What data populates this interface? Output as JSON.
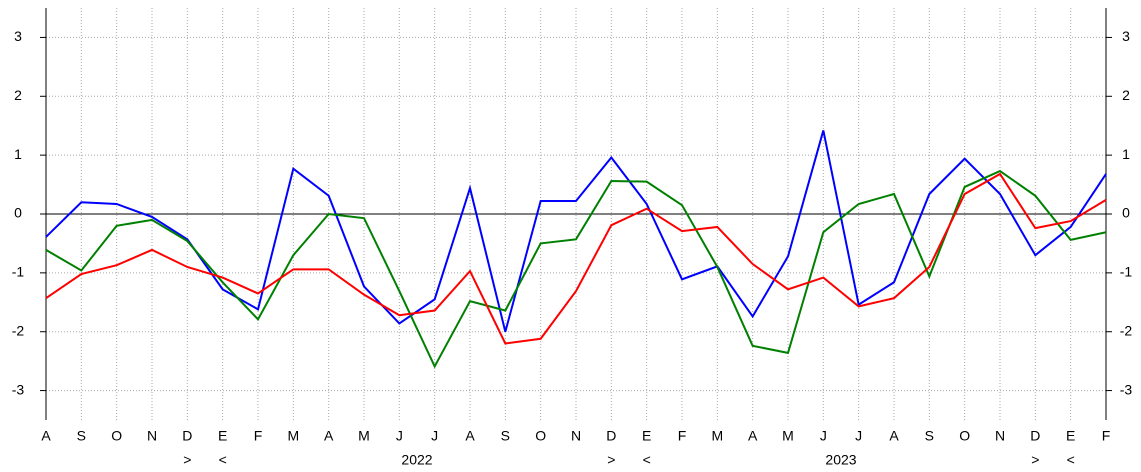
{
  "chart_data": {
    "type": "line",
    "categories": [
      "A",
      "S",
      "O",
      "N",
      "D",
      "E",
      "F",
      "M",
      "A",
      "M",
      "J",
      "J",
      "A",
      "S",
      "O",
      "N",
      "D",
      "E",
      "F",
      "M",
      "A",
      "M",
      "J",
      "J",
      "A",
      "S",
      "O",
      "N",
      "D",
      "E",
      "F"
    ],
    "x_sublabels": [
      null,
      null,
      null,
      null,
      ">",
      "<",
      null,
      null,
      null,
      null,
      null,
      null,
      null,
      null,
      null,
      null,
      ">",
      "<",
      null,
      null,
      null,
      null,
      null,
      null,
      null,
      null,
      null,
      null,
      ">",
      "<",
      null
    ],
    "year_spans": [
      {
        "label": "2022",
        "first": 5,
        "last": 16
      },
      {
        "label": "2023",
        "first": 17,
        "last": 28
      }
    ],
    "series": [
      {
        "color": "#0000ff",
        "values": [
          -0.39,
          0.2,
          0.17,
          -0.05,
          -0.43,
          -1.28,
          -1.62,
          0.77,
          0.31,
          -1.23,
          -1.86,
          -1.45,
          0.44,
          -2.0,
          0.22,
          0.22,
          0.96,
          0.17,
          -1.11,
          -0.89,
          -1.74,
          -0.72,
          1.42,
          -1.54,
          -1.16,
          0.34,
          0.94,
          0.34,
          -0.7,
          -0.22,
          0.68
        ]
      },
      {
        "color": "#008000",
        "values": [
          -0.61,
          -0.96,
          -0.2,
          -0.1,
          -0.46,
          -1.16,
          -1.79,
          -0.7,
          0.0,
          -0.07,
          -1.31,
          -2.59,
          -1.48,
          -1.64,
          -0.5,
          -0.43,
          0.56,
          0.55,
          0.15,
          -0.9,
          -2.24,
          -2.36,
          -0.31,
          0.17,
          0.34,
          -1.06,
          0.46,
          0.73,
          0.31,
          -0.44,
          -0.31
        ]
      },
      {
        "color": "#ff0000",
        "values": [
          -1.43,
          -1.02,
          -0.87,
          -0.61,
          -0.9,
          -1.08,
          -1.35,
          -0.94,
          -0.94,
          -1.37,
          -1.72,
          -1.64,
          -0.97,
          -2.2,
          -2.12,
          -1.31,
          -0.19,
          0.09,
          -0.29,
          -0.22,
          -0.85,
          -1.28,
          -1.08,
          -1.57,
          -1.43,
          -0.9,
          0.34,
          0.68,
          -0.24,
          -0.12,
          0.24
        ]
      }
    ],
    "ylim": [
      -3.5,
      3.5
    ],
    "yticks": [
      -3,
      -2,
      -1,
      0,
      1,
      2,
      3
    ],
    "y2lim": [
      -3.5,
      3.5
    ],
    "y2ticks": [
      -3,
      -2,
      -1,
      0,
      1,
      2,
      3
    ],
    "grid": true,
    "zero_line": true
  }
}
